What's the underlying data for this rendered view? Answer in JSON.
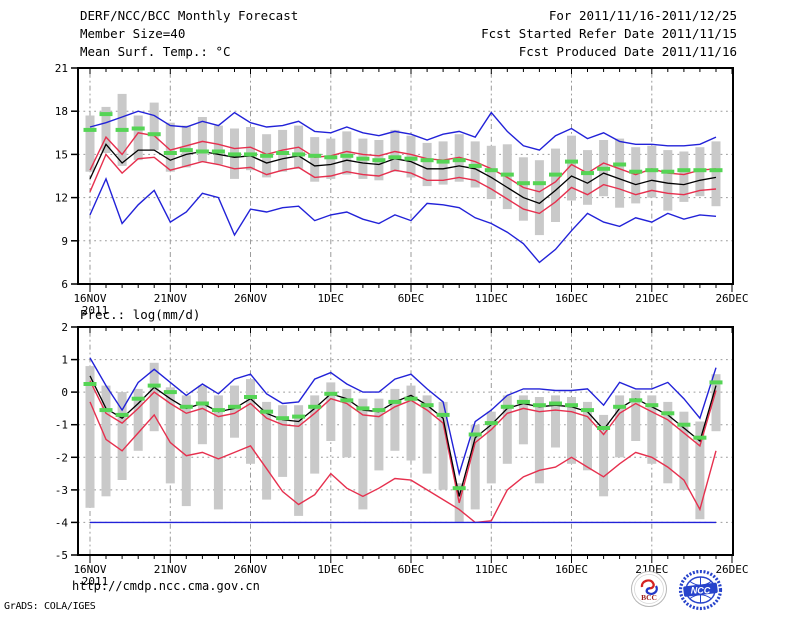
{
  "header": {
    "title": "DERF/NCC/BCC Monthly Forecast",
    "member_size_label": "Member Size=40",
    "for_range": "For 2011/11/16-2011/12/25",
    "refer_date": "Fcst Started Refer Date 2011/11/15",
    "produced_date": "Fcst Produced Date 2011/11/16"
  },
  "footer": {
    "url": "http://cmdp.ncc.cma.gov.cn",
    "credit": "GrADS: COLA/IGES"
  },
  "logos": {
    "bcc_label": "BCC",
    "ncc_label": "NCC"
  },
  "colors": {
    "blue": "#2222d8",
    "red": "#e6304e",
    "black": "#000000",
    "green": "#55d455",
    "gray": "#c9c9c9",
    "grid": "#9b9b9b"
  },
  "chart_data": [
    {
      "type": "line",
      "title": "Mean Surf. Temp.: °C",
      "n_days": 40,
      "ylim": [
        6,
        21
      ],
      "yticks": [
        6,
        9,
        12,
        15,
        18,
        21
      ],
      "grid": true,
      "legend": "none",
      "x_ticks": [
        {
          "day": 0,
          "label": "16NOV",
          "sub": "2011"
        },
        {
          "day": 5,
          "label": "21NOV"
        },
        {
          "day": 10,
          "label": "26NOV"
        },
        {
          "day": 15,
          "label": "1DEC"
        },
        {
          "day": 20,
          "label": "6DEC"
        },
        {
          "day": 25,
          "label": "11DEC"
        },
        {
          "day": 30,
          "label": "16DEC"
        },
        {
          "day": 35,
          "label": "21DEC"
        },
        {
          "day": 40,
          "label": "26DEC"
        }
      ],
      "series": [
        {
          "name": "ensemble-max",
          "color": "blue",
          "values": [
            16.9,
            17.2,
            17.6,
            18.0,
            17.7,
            17.0,
            16.9,
            17.3,
            17.0,
            17.9,
            17.2,
            16.9,
            17.0,
            17.3,
            16.6,
            16.5,
            16.9,
            16.5,
            16.3,
            16.6,
            16.4,
            16.0,
            16.4,
            16.6,
            16.2,
            17.9,
            16.6,
            15.6,
            15.3,
            16.3,
            16.8,
            16.1,
            16.5,
            15.9,
            15.7,
            15.7,
            15.6,
            15.6,
            15.7,
            16.2
          ]
        },
        {
          "name": "ensemble-plus-sd",
          "color": "red",
          "values": [
            13.9,
            16.2,
            15.0,
            16.5,
            16.3,
            15.3,
            15.6,
            15.9,
            15.7,
            15.4,
            15.5,
            15.0,
            15.3,
            15.5,
            14.8,
            14.9,
            15.2,
            15.0,
            14.9,
            15.2,
            15.0,
            14.7,
            14.6,
            14.8,
            14.5,
            14.0,
            13.4,
            12.7,
            12.4,
            13.1,
            14.3,
            13.7,
            14.4,
            14.0,
            13.6,
            14.0,
            13.7,
            13.6,
            13.9,
            14.0
          ]
        },
        {
          "name": "ensemble-mean",
          "color": "black",
          "values": [
            13.3,
            15.7,
            14.4,
            15.3,
            15.3,
            14.6,
            15.0,
            15.2,
            15.0,
            14.8,
            14.9,
            14.4,
            14.7,
            14.9,
            14.2,
            14.3,
            14.6,
            14.4,
            14.3,
            14.7,
            14.5,
            14.0,
            14.0,
            14.2,
            14.0,
            13.4,
            12.7,
            12.0,
            11.6,
            12.5,
            13.5,
            13.0,
            13.7,
            13.3,
            12.9,
            13.2,
            13.0,
            12.9,
            13.2,
            13.4
          ]
        },
        {
          "name": "ensemble-minus-sd",
          "color": "red",
          "values": [
            12.4,
            15.0,
            13.7,
            14.7,
            14.8,
            13.9,
            14.2,
            14.5,
            14.3,
            14.0,
            14.1,
            13.6,
            13.9,
            14.1,
            13.4,
            13.5,
            13.8,
            13.6,
            13.5,
            13.9,
            13.7,
            13.2,
            13.2,
            13.4,
            13.2,
            12.6,
            11.9,
            11.2,
            10.9,
            11.7,
            12.7,
            12.2,
            12.9,
            12.6,
            12.2,
            12.5,
            12.3,
            12.2,
            12.5,
            12.6
          ]
        },
        {
          "name": "ensemble-min",
          "color": "blue",
          "values": [
            10.8,
            13.3,
            10.2,
            11.5,
            12.5,
            10.3,
            11.0,
            12.3,
            12.0,
            9.4,
            11.2,
            11.0,
            11.3,
            11.4,
            10.4,
            10.8,
            11.0,
            10.5,
            10.2,
            10.8,
            10.4,
            11.6,
            11.5,
            11.3,
            10.6,
            10.2,
            9.6,
            8.8,
            7.5,
            8.4,
            9.7,
            10.9,
            10.3,
            10.0,
            10.6,
            10.3,
            10.9,
            10.5,
            10.8,
            10.7
          ]
        }
      ],
      "obs_dashes": {
        "name": "observation-dash",
        "color": "green",
        "values": [
          16.7,
          17.8,
          16.7,
          16.8,
          16.4,
          15.1,
          15.3,
          15.2,
          15.2,
          15.0,
          15.0,
          14.9,
          15.1,
          15.0,
          14.9,
          14.8,
          14.9,
          14.7,
          14.6,
          14.8,
          14.7,
          14.6,
          14.5,
          14.6,
          14.2,
          13.9,
          13.6,
          13.0,
          13.0,
          13.6,
          14.5,
          13.7,
          14.0,
          14.3,
          13.8,
          13.9,
          13.8,
          13.9,
          13.9,
          13.9
        ]
      },
      "bars": {
        "name": "member-spread-bar",
        "color": "gray",
        "ranges": [
          [
            13.8,
            17.7
          ],
          [
            15.1,
            18.3
          ],
          [
            14.2,
            19.2
          ],
          [
            14.6,
            17.7
          ],
          [
            15.3,
            18.6
          ],
          [
            13.8,
            17.2
          ],
          [
            14.1,
            17.0
          ],
          [
            14.5,
            17.6
          ],
          [
            14.3,
            17.0
          ],
          [
            13.3,
            16.8
          ],
          [
            13.9,
            16.9
          ],
          [
            13.4,
            16.4
          ],
          [
            13.8,
            16.7
          ],
          [
            14.0,
            17.0
          ],
          [
            13.1,
            16.2
          ],
          [
            13.3,
            16.1
          ],
          [
            13.6,
            16.6
          ],
          [
            13.3,
            16.1
          ],
          [
            13.2,
            16.0
          ],
          [
            13.8,
            16.7
          ],
          [
            13.4,
            16.3
          ],
          [
            12.8,
            15.8
          ],
          [
            12.9,
            15.9
          ],
          [
            13.1,
            16.4
          ],
          [
            12.7,
            15.9
          ],
          [
            11.9,
            15.6
          ],
          [
            11.2,
            15.7
          ],
          [
            10.4,
            14.8
          ],
          [
            9.4,
            14.6
          ],
          [
            10.3,
            15.4
          ],
          [
            11.8,
            16.3
          ],
          [
            11.5,
            15.3
          ],
          [
            12.1,
            16.0
          ],
          [
            11.3,
            16.1
          ],
          [
            11.6,
            15.5
          ],
          [
            12.0,
            15.6
          ],
          [
            11.1,
            15.3
          ],
          [
            11.7,
            15.2
          ],
          [
            12.1,
            15.5
          ],
          [
            11.4,
            15.9
          ]
        ]
      }
    },
    {
      "type": "line",
      "title": "Prec.: log(mm/d)",
      "n_days": 40,
      "ylim": [
        -5,
        2
      ],
      "yticks": [
        -5,
        -4,
        -3,
        -2,
        -1,
        0,
        1,
        2
      ],
      "grid": true,
      "legend": "none",
      "x_ticks": [
        {
          "day": 0,
          "label": "16NOV",
          "sub": "2011"
        },
        {
          "day": 5,
          "label": "21NOV"
        },
        {
          "day": 10,
          "label": "26NOV"
        },
        {
          "day": 15,
          "label": "1DEC"
        },
        {
          "day": 20,
          "label": "6DEC"
        },
        {
          "day": 25,
          "label": "11DEC"
        },
        {
          "day": 30,
          "label": "16DEC"
        },
        {
          "day": 35,
          "label": "21DEC"
        },
        {
          "day": 40,
          "label": "26DEC"
        }
      ],
      "series": [
        {
          "name": "ensemble-max",
          "color": "blue",
          "values": [
            1.05,
            0.2,
            -0.55,
            0.3,
            0.7,
            0.3,
            -0.1,
            0.25,
            -0.05,
            0.4,
            0.55,
            -0.05,
            -0.35,
            -0.3,
            0.4,
            0.6,
            0.25,
            0.0,
            0.0,
            0.4,
            0.55,
            0.1,
            -0.3,
            -2.5,
            -0.9,
            -0.55,
            -0.1,
            0.1,
            0.1,
            0.05,
            0.05,
            0.1,
            -0.4,
            0.3,
            0.1,
            0.1,
            0.3,
            -0.2,
            -0.8,
            0.75
          ]
        },
        {
          "name": "ensemble-plus-sd",
          "color": "red",
          "values": [
            0.35,
            -0.65,
            -0.95,
            -0.5,
            0.0,
            -0.35,
            -0.65,
            -0.5,
            -0.75,
            -0.65,
            -0.35,
            -0.8,
            -1.0,
            -1.05,
            -0.65,
            -0.2,
            -0.35,
            -0.7,
            -0.75,
            -0.45,
            -0.25,
            -0.55,
            -0.95,
            -3.4,
            -1.55,
            -1.15,
            -0.65,
            -0.5,
            -0.6,
            -0.55,
            -0.6,
            -0.75,
            -1.3,
            -0.65,
            -0.35,
            -0.6,
            -0.85,
            -1.25,
            -1.65,
            0.05
          ]
        },
        {
          "name": "ensemble-mean",
          "color": "black",
          "values": [
            0.5,
            -0.5,
            -0.8,
            -0.35,
            0.15,
            -0.2,
            -0.5,
            -0.35,
            -0.6,
            -0.5,
            -0.2,
            -0.65,
            -0.85,
            -0.9,
            -0.5,
            -0.05,
            -0.2,
            -0.55,
            -0.6,
            -0.3,
            -0.1,
            -0.4,
            -0.8,
            -3.2,
            -1.4,
            -1.0,
            -0.5,
            -0.35,
            -0.45,
            -0.4,
            -0.45,
            -0.6,
            -1.15,
            -0.5,
            -0.2,
            -0.45,
            -0.7,
            -1.1,
            -1.5,
            0.2
          ]
        },
        {
          "name": "ensemble-minus-sd",
          "color": "red",
          "values": [
            -0.3,
            -1.45,
            -1.8,
            -1.25,
            -0.7,
            -1.55,
            -1.95,
            -1.85,
            -2.05,
            -1.85,
            -1.65,
            -2.35,
            -3.05,
            -3.45,
            -3.15,
            -2.5,
            -2.95,
            -3.2,
            -2.95,
            -2.65,
            -2.7,
            -3.0,
            -3.3,
            -3.6,
            -4.0,
            -3.95,
            -3.0,
            -2.6,
            -2.4,
            -2.3,
            -2.0,
            -2.3,
            -2.6,
            -2.2,
            -1.85,
            -2.0,
            -2.3,
            -2.7,
            -3.6,
            -1.8
          ]
        },
        {
          "name": "ensemble-min",
          "color": "blue",
          "values": [
            -4.0,
            -4.0,
            -4.0,
            -4.0,
            -4.0,
            -4.0,
            -4.0,
            -4.0,
            -4.0,
            -4.0,
            -4.0,
            -4.0,
            -4.0,
            -4.0,
            -4.0,
            -4.0,
            -4.0,
            -4.0,
            -4.0,
            -4.0,
            -4.0,
            -4.0,
            -4.0,
            -4.0,
            -4.0,
            -4.0,
            -4.0,
            -4.0,
            -4.0,
            -4.0,
            -4.0,
            -4.0,
            -4.0,
            -4.0,
            -4.0,
            -4.0,
            -4.0,
            -4.0,
            -4.0,
            -4.0
          ]
        }
      ],
      "obs_dashes": {
        "name": "observation-dash",
        "color": "green",
        "values": [
          0.25,
          -0.55,
          -0.7,
          -0.2,
          0.2,
          0.0,
          -0.45,
          -0.35,
          -0.55,
          -0.45,
          -0.15,
          -0.6,
          -0.8,
          -0.75,
          -0.45,
          -0.05,
          -0.25,
          -0.5,
          -0.55,
          -0.3,
          -0.2,
          -0.4,
          -0.7,
          -2.95,
          -1.3,
          -0.95,
          -0.45,
          -0.3,
          -0.4,
          -0.35,
          -0.4,
          -0.55,
          -1.1,
          -0.45,
          -0.25,
          -0.4,
          -0.65,
          -1.0,
          -1.4,
          0.3
        ]
      },
      "bars": {
        "name": "member-spread-bar",
        "color": "gray",
        "ranges": [
          [
            -3.55,
            0.8
          ],
          [
            -3.2,
            0.2
          ],
          [
            -2.7,
            0.0
          ],
          [
            -1.8,
            0.1
          ],
          [
            -1.2,
            0.9
          ],
          [
            -2.8,
            0.15
          ],
          [
            -3.5,
            -0.1
          ],
          [
            -1.6,
            0.2
          ],
          [
            -3.6,
            -0.1
          ],
          [
            -1.4,
            0.2
          ],
          [
            -2.2,
            0.4
          ],
          [
            -3.3,
            -0.3
          ],
          [
            -2.6,
            -0.4
          ],
          [
            -3.8,
            -0.4
          ],
          [
            -2.5,
            -0.1
          ],
          [
            -1.5,
            0.3
          ],
          [
            -2.0,
            0.1
          ],
          [
            -3.6,
            -0.2
          ],
          [
            -2.4,
            -0.2
          ],
          [
            -1.8,
            0.1
          ],
          [
            -2.1,
            0.2
          ],
          [
            -2.5,
            -0.1
          ],
          [
            -3.0,
            -0.3
          ],
          [
            -4.0,
            -2.8
          ],
          [
            -3.6,
            -1.0
          ],
          [
            -2.8,
            -0.6
          ],
          [
            -2.2,
            -0.1
          ],
          [
            -1.6,
            -0.1
          ],
          [
            -2.8,
            -0.15
          ],
          [
            -1.7,
            -0.1
          ],
          [
            -2.2,
            -0.15
          ],
          [
            -2.4,
            -0.3
          ],
          [
            -3.2,
            -0.7
          ],
          [
            -2.0,
            -0.1
          ],
          [
            -1.5,
            0.05
          ],
          [
            -2.2,
            -0.1
          ],
          [
            -2.8,
            -0.3
          ],
          [
            -3.0,
            -0.6
          ],
          [
            -3.9,
            -0.9
          ],
          [
            -1.2,
            0.55
          ]
        ]
      }
    }
  ]
}
